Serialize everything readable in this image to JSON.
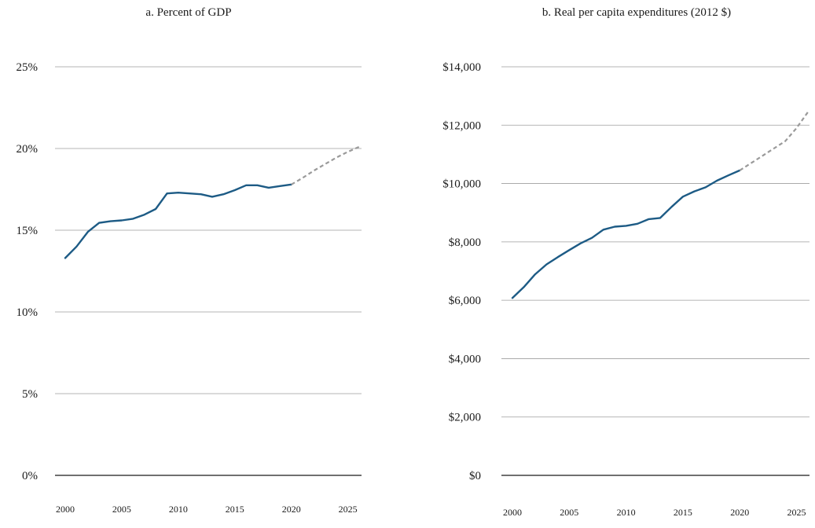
{
  "colors": {
    "actual": "#1d5b85",
    "projected": "#9a9a9a",
    "grid": "#9e9e9e",
    "zero_line": "#1a1a1a"
  },
  "chart_data": [
    {
      "type": "line",
      "title": "a. Percent of GDP",
      "xlabel": "",
      "ylabel": "",
      "xlim": [
        2000,
        2026
      ],
      "ylim": [
        0,
        25
      ],
      "y_ticks": [
        0,
        5,
        10,
        15,
        20,
        25
      ],
      "y_tick_labels": [
        "0%",
        "5%",
        "10%",
        "15%",
        "20%",
        "25%"
      ],
      "x_ticks": [
        2000,
        2005,
        2010,
        2015,
        2020,
        2025
      ],
      "x_tick_labels": [
        "2000",
        "2005",
        "2010",
        "2015",
        "2020",
        "2025"
      ],
      "grid": "horizontal",
      "series": [
        {
          "style": "solid",
          "x": [
            2000,
            2001,
            2002,
            2003,
            2004,
            2005,
            2006,
            2007,
            2008,
            2009,
            2010,
            2011,
            2012,
            2013,
            2014,
            2015,
            2016,
            2017,
            2018,
            2019,
            2020
          ],
          "y": [
            13.3,
            14.0,
            14.9,
            15.45,
            15.55,
            15.6,
            15.7,
            15.95,
            16.3,
            17.25,
            17.3,
            17.25,
            17.2,
            17.05,
            17.2,
            17.45,
            17.75,
            17.75,
            17.6,
            17.7,
            17.8
          ]
        },
        {
          "style": "dashed",
          "x": [
            2020,
            2021,
            2022,
            2023,
            2024,
            2025,
            2026
          ],
          "y": [
            17.8,
            18.2,
            18.65,
            19.05,
            19.45,
            19.8,
            20.1
          ]
        }
      ]
    },
    {
      "type": "line",
      "title": "b. Real per capita expenditures (2012 $)",
      "xlabel": "",
      "ylabel": "",
      "xlim": [
        2000,
        2026
      ],
      "ylim": [
        0,
        14000
      ],
      "y_ticks": [
        0,
        2000,
        4000,
        6000,
        8000,
        10000,
        12000,
        14000
      ],
      "y_tick_labels": [
        "$0",
        "$2,000",
        "$4,000",
        "$6,000",
        "$8,000",
        "$10,000",
        "$12,000",
        "$14,000"
      ],
      "x_ticks": [
        2000,
        2005,
        2010,
        2015,
        2020,
        2025
      ],
      "x_tick_labels": [
        "2000",
        "2005",
        "2010",
        "2015",
        "2020",
        "2025"
      ],
      "grid": "horizontal",
      "series": [
        {
          "style": "solid",
          "x": [
            2000,
            2001,
            2002,
            2003,
            2004,
            2005,
            2006,
            2007,
            2008,
            2009,
            2010,
            2011,
            2012,
            2013,
            2014,
            2015,
            2016,
            2017,
            2018,
            2019,
            2020
          ],
          "y": [
            6080,
            6450,
            6890,
            7230,
            7480,
            7720,
            7950,
            8140,
            8420,
            8520,
            8550,
            8620,
            8780,
            8820,
            9200,
            9550,
            9730,
            9870,
            10100,
            10280,
            10450
          ]
        },
        {
          "style": "dashed",
          "x": [
            2020,
            2021,
            2022,
            2023,
            2024,
            2025,
            2026
          ],
          "y": [
            10450,
            10700,
            10950,
            11200,
            11450,
            11900,
            12450
          ]
        }
      ]
    }
  ]
}
